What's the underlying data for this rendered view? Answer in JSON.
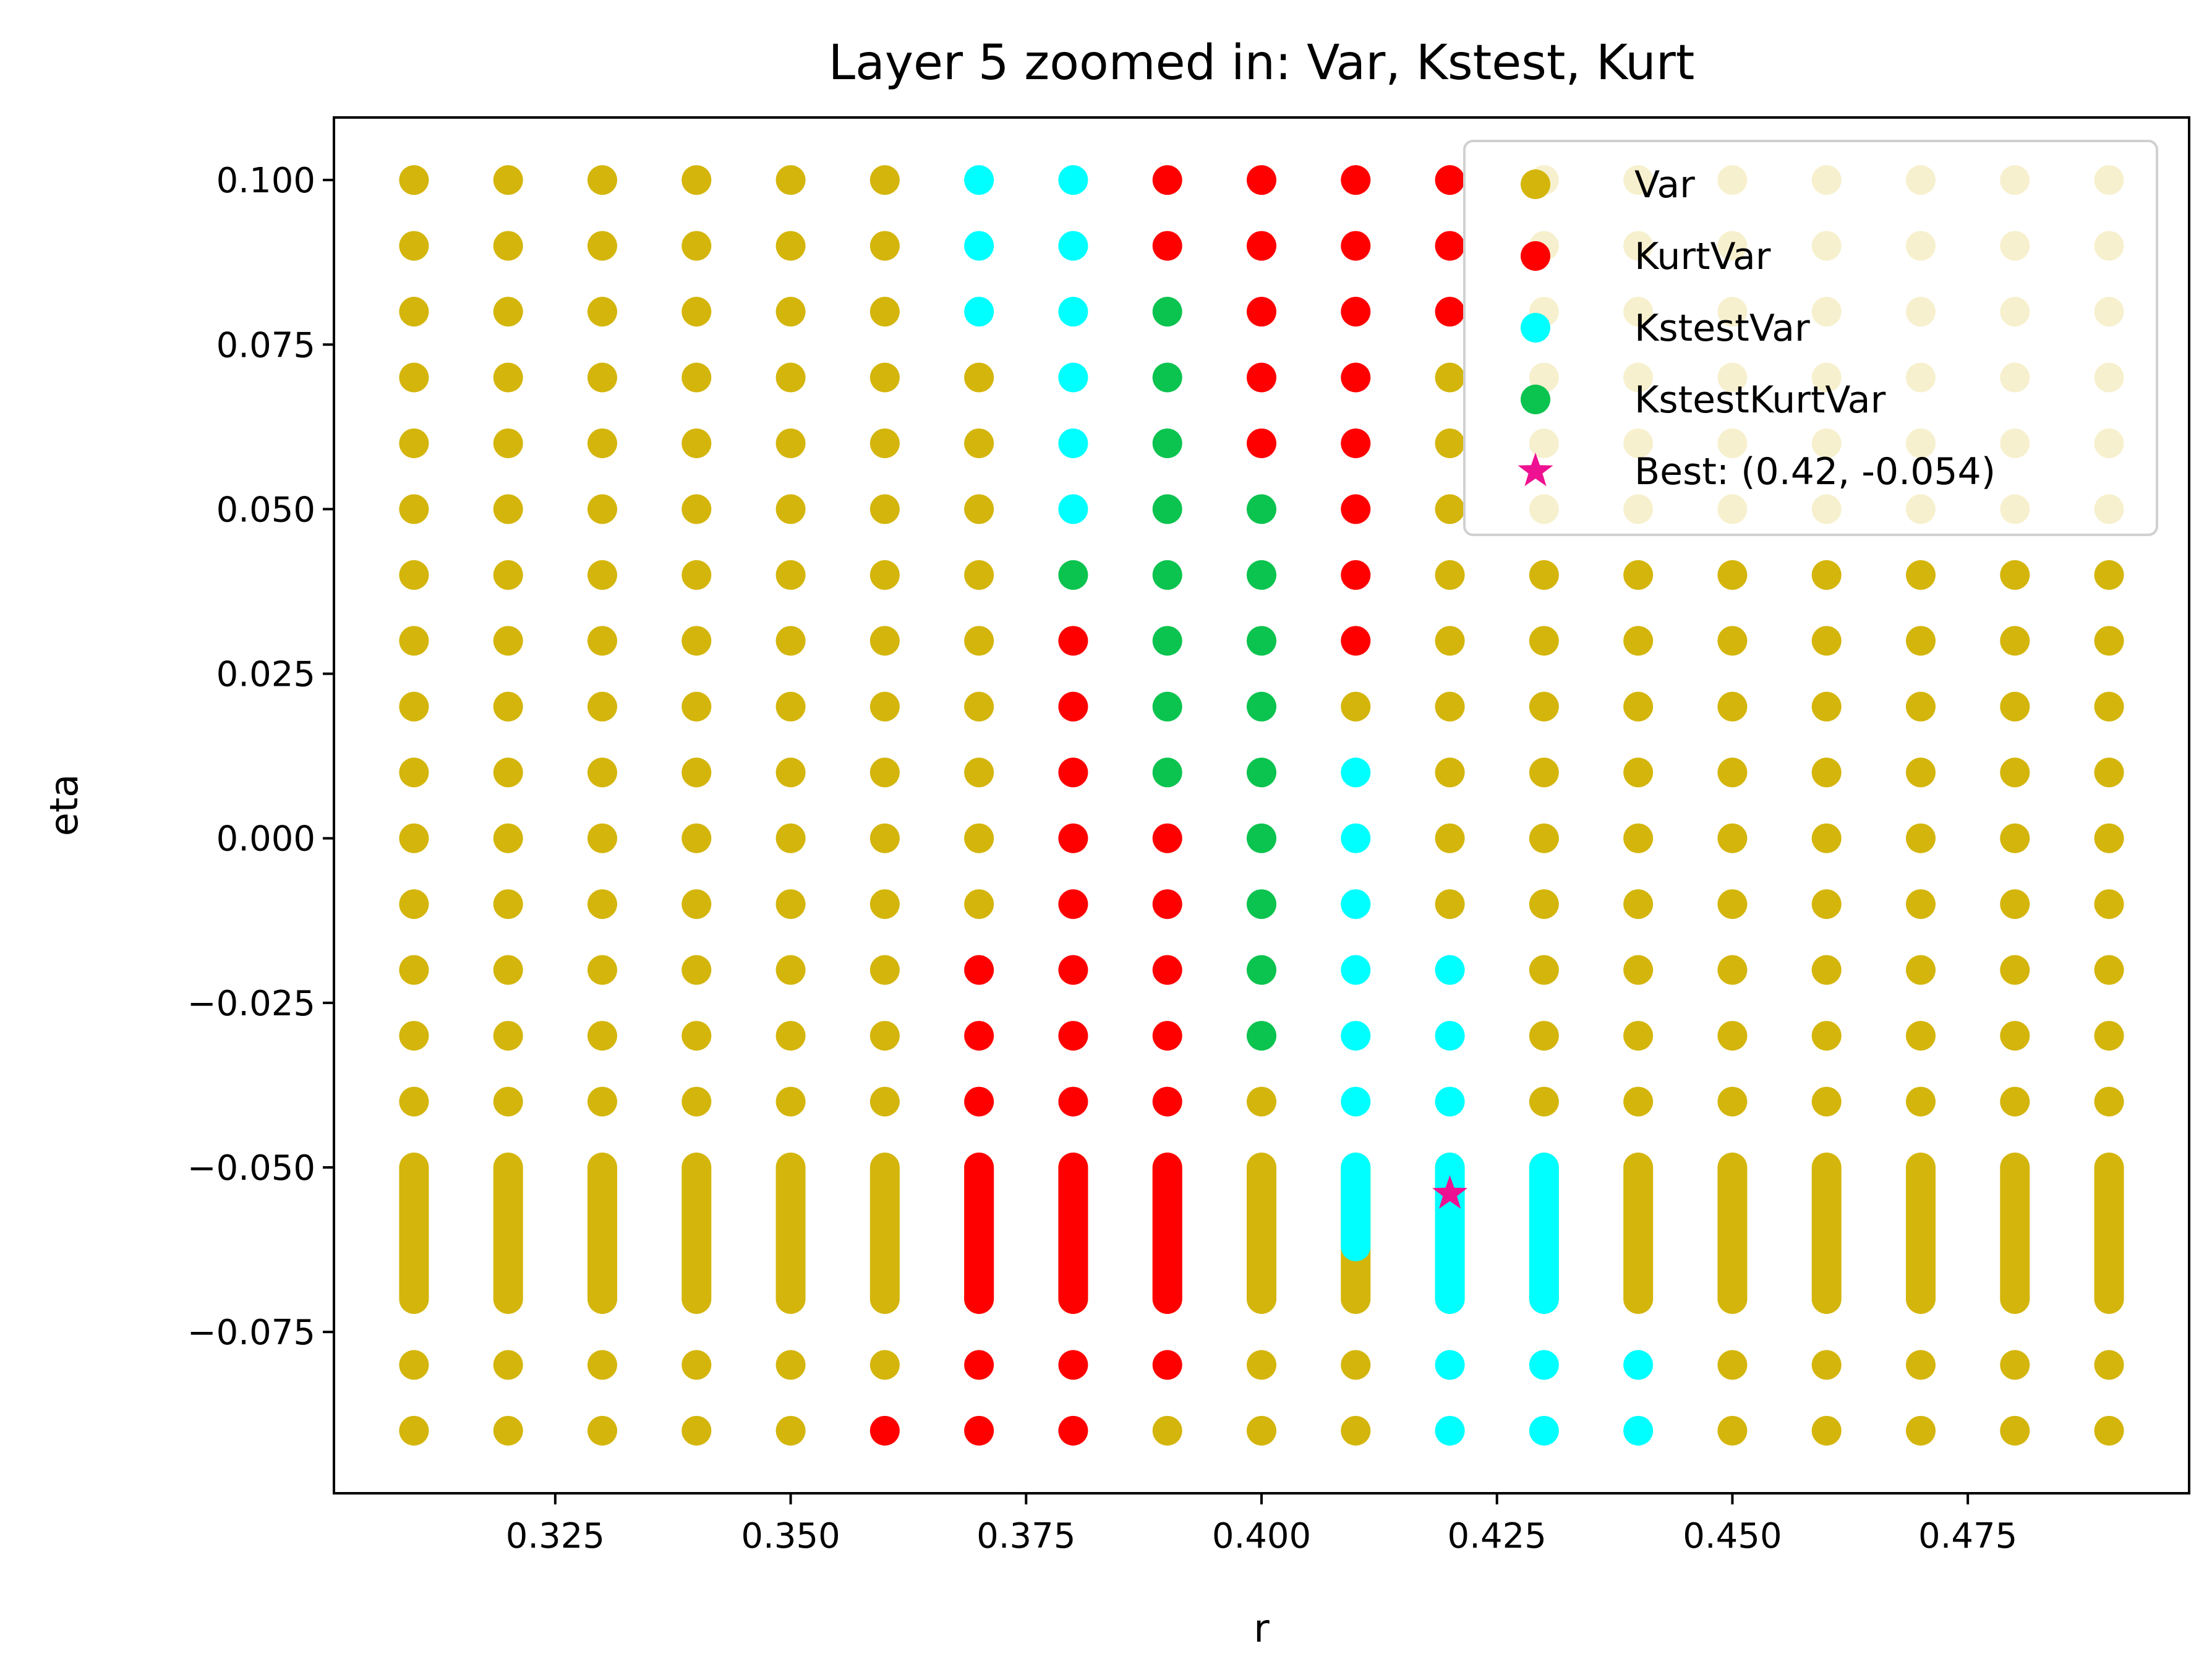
{
  "chart_data": {
    "type": "scatter",
    "title": "Layer 5 zoomed in: Var, Kstest, Kurt",
    "xlabel": "r",
    "ylabel": "eta",
    "xlim": [
      0.3015,
      0.4985
    ],
    "ylim": [
      -0.0995,
      0.1095
    ],
    "xticks": [
      0.325,
      0.35,
      0.375,
      0.4,
      0.425,
      0.45,
      0.475
    ],
    "xtick_labels": [
      "0.325",
      "0.350",
      "0.375",
      "0.400",
      "0.425",
      "0.450",
      "0.475"
    ],
    "yticks": [
      0.1,
      0.075,
      0.05,
      0.025,
      0.0,
      -0.025,
      -0.05,
      -0.075
    ],
    "ytick_labels": [
      "0.100",
      "0.075",
      "0.050",
      "0.025",
      "0.000",
      "−0.025",
      "−0.050",
      "−0.075"
    ],
    "grid": false,
    "legend_position": "top-right",
    "r_values": [
      0.31,
      0.32,
      0.33,
      0.34,
      0.35,
      0.36,
      0.37,
      0.38,
      0.39,
      0.4,
      0.41,
      0.42,
      0.43,
      0.44,
      0.45,
      0.46,
      0.47,
      0.48,
      0.49
    ],
    "eta_values": [
      0.1,
      0.09,
      0.08,
      0.07,
      0.06,
      0.05,
      0.04,
      0.03,
      0.02,
      0.01,
      0.0,
      -0.01,
      -0.02,
      -0.03,
      -0.04,
      -0.08,
      -0.09
    ],
    "dense_eta_range": [
      -0.07,
      -0.05
    ],
    "series": [
      {
        "name": "Var",
        "color": "#d4b50b",
        "marker": "circle",
        "description": "all (r, eta) grid points not covered by another series"
      },
      {
        "name": "KurtVar",
        "color": "#ff0000",
        "marker": "circle",
        "points": [
          [
            0.39,
            0.1
          ],
          [
            0.4,
            0.1
          ],
          [
            0.41,
            0.1
          ],
          [
            0.42,
            0.1
          ],
          [
            0.39,
            0.09
          ],
          [
            0.4,
            0.09
          ],
          [
            0.41,
            0.09
          ],
          [
            0.42,
            0.09
          ],
          [
            0.4,
            0.08
          ],
          [
            0.41,
            0.08
          ],
          [
            0.42,
            0.08
          ],
          [
            0.4,
            0.07
          ],
          [
            0.41,
            0.07
          ],
          [
            0.4,
            0.06
          ],
          [
            0.41,
            0.06
          ],
          [
            0.41,
            0.05
          ],
          [
            0.41,
            0.04
          ],
          [
            0.38,
            0.03
          ],
          [
            0.41,
            0.03
          ],
          [
            0.38,
            0.02
          ],
          [
            0.38,
            0.01
          ],
          [
            0.38,
            0.0
          ],
          [
            0.39,
            0.0
          ],
          [
            0.38,
            -0.01
          ],
          [
            0.39,
            -0.01
          ],
          [
            0.37,
            -0.02
          ],
          [
            0.38,
            -0.02
          ],
          [
            0.39,
            -0.02
          ],
          [
            0.37,
            -0.03
          ],
          [
            0.38,
            -0.03
          ],
          [
            0.39,
            -0.03
          ],
          [
            0.37,
            -0.04
          ],
          [
            0.38,
            -0.04
          ],
          [
            0.39,
            -0.04
          ],
          [
            0.37,
            -0.08
          ],
          [
            0.38,
            -0.08
          ],
          [
            0.39,
            -0.08
          ],
          [
            0.36,
            -0.09
          ],
          [
            0.37,
            -0.09
          ],
          [
            0.38,
            -0.09
          ]
        ],
        "dense_columns": [
          {
            "r": 0.37,
            "eta_range": [
              -0.07,
              -0.05
            ]
          },
          {
            "r": 0.38,
            "eta_range": [
              -0.07,
              -0.05
            ]
          },
          {
            "r": 0.39,
            "eta_range": [
              -0.07,
              -0.05
            ]
          }
        ]
      },
      {
        "name": "KstestVar",
        "color": "#00ffff",
        "marker": "circle",
        "points": [
          [
            0.37,
            0.1
          ],
          [
            0.38,
            0.1
          ],
          [
            0.37,
            0.09
          ],
          [
            0.38,
            0.09
          ],
          [
            0.37,
            0.08
          ],
          [
            0.38,
            0.08
          ],
          [
            0.38,
            0.07
          ],
          [
            0.38,
            0.06
          ],
          [
            0.38,
            0.05
          ],
          [
            0.41,
            0.01
          ],
          [
            0.41,
            0.0
          ],
          [
            0.41,
            -0.01
          ],
          [
            0.41,
            -0.02
          ],
          [
            0.42,
            -0.02
          ],
          [
            0.41,
            -0.03
          ],
          [
            0.42,
            -0.03
          ],
          [
            0.41,
            -0.04
          ],
          [
            0.42,
            -0.04
          ],
          [
            0.42,
            -0.08
          ],
          [
            0.43,
            -0.08
          ],
          [
            0.44,
            -0.08
          ],
          [
            0.42,
            -0.09
          ],
          [
            0.43,
            -0.09
          ],
          [
            0.44,
            -0.09
          ]
        ],
        "dense_columns": [
          {
            "r": 0.41,
            "eta_range": [
              -0.062,
              -0.05
            ]
          },
          {
            "r": 0.42,
            "eta_range": [
              -0.07,
              -0.05
            ]
          },
          {
            "r": 0.43,
            "eta_range": [
              -0.07,
              -0.05
            ]
          }
        ]
      },
      {
        "name": "KstestKurtVar",
        "color": "#0bc34f",
        "marker": "circle",
        "points": [
          [
            0.39,
            0.08
          ],
          [
            0.39,
            0.07
          ],
          [
            0.39,
            0.06
          ],
          [
            0.39,
            0.05
          ],
          [
            0.4,
            0.05
          ],
          [
            0.38,
            0.04
          ],
          [
            0.39,
            0.04
          ],
          [
            0.4,
            0.04
          ],
          [
            0.39,
            0.03
          ],
          [
            0.4,
            0.03
          ],
          [
            0.39,
            0.02
          ],
          [
            0.4,
            0.02
          ],
          [
            0.39,
            0.01
          ],
          [
            0.4,
            0.01
          ],
          [
            0.4,
            0.0
          ],
          [
            0.4,
            -0.01
          ],
          [
            0.4,
            -0.02
          ],
          [
            0.4,
            -0.03
          ]
        ]
      },
      {
        "name": "Best: (0.42, -0.054)",
        "color": "#ee1191",
        "marker": "star",
        "points": [
          [
            0.42,
            -0.054
          ]
        ]
      }
    ]
  }
}
